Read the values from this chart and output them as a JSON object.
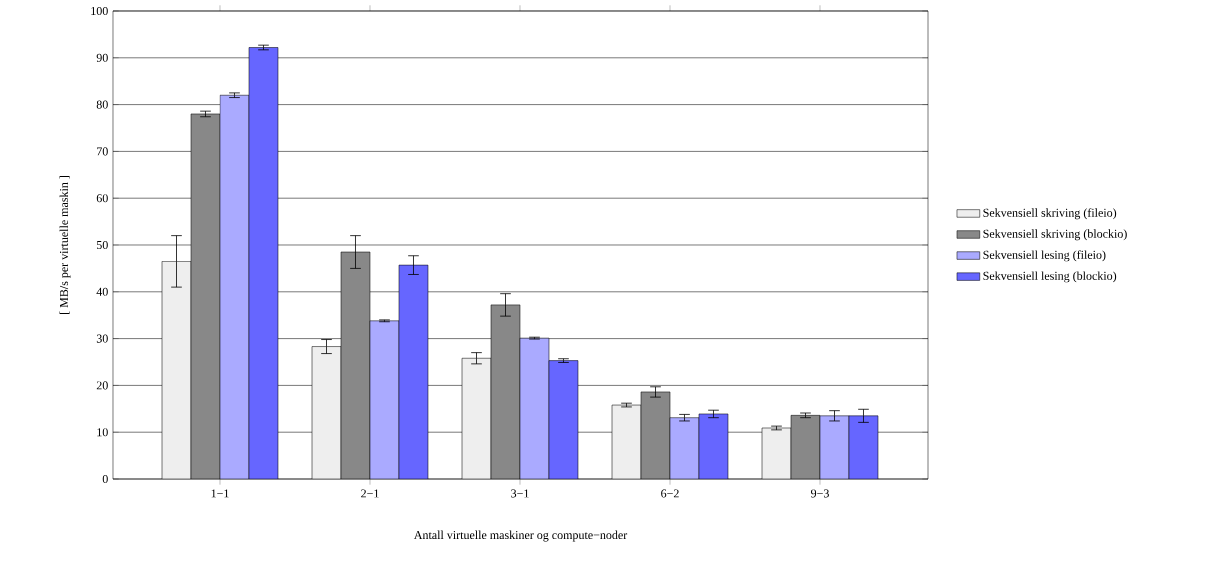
{
  "chart_data": {
    "type": "bar",
    "xlabel": "Antall virtuelle maskiner og compute−noder",
    "ylabel": "[ MB/s per virtuelle maskin ]",
    "categories": [
      "1−1",
      "2−1",
      "3−1",
      "6−2",
      "9−3"
    ],
    "series": [
      {
        "name": "Sekvensiell skriving (fileio)",
        "color": "#eeeeee",
        "values": [
          46.5,
          28.3,
          25.8,
          15.8,
          10.9
        ],
        "errors": [
          5.5,
          1.5,
          1.2,
          0.4,
          0.4
        ]
      },
      {
        "name": "Sekvensiell skriving (blockio)",
        "color": "#888888",
        "values": [
          78,
          48.5,
          37.2,
          18.6,
          13.6
        ],
        "errors": [
          0.6,
          3.5,
          2.4,
          1.1,
          0.5
        ]
      },
      {
        "name": "Sekvensiell lesing (fileio)",
        "color": "#aaaaff",
        "values": [
          82,
          33.8,
          30.1,
          13.1,
          13.5
        ],
        "errors": [
          0.5,
          0.2,
          0.2,
          0.7,
          1.1
        ]
      },
      {
        "name": "Sekvensiell lesing (blockio)",
        "color": "#6666ff",
        "values": [
          92.2,
          45.7,
          25.3,
          13.9,
          13.5
        ],
        "errors": [
          0.5,
          2.0,
          0.4,
          0.8,
          1.4
        ]
      }
    ],
    "ylim": [
      0,
      100
    ],
    "yticks": [
      0,
      10,
      20,
      30,
      40,
      50,
      60,
      70,
      80,
      90,
      100
    ],
    "grid": "y",
    "legend": "right"
  }
}
